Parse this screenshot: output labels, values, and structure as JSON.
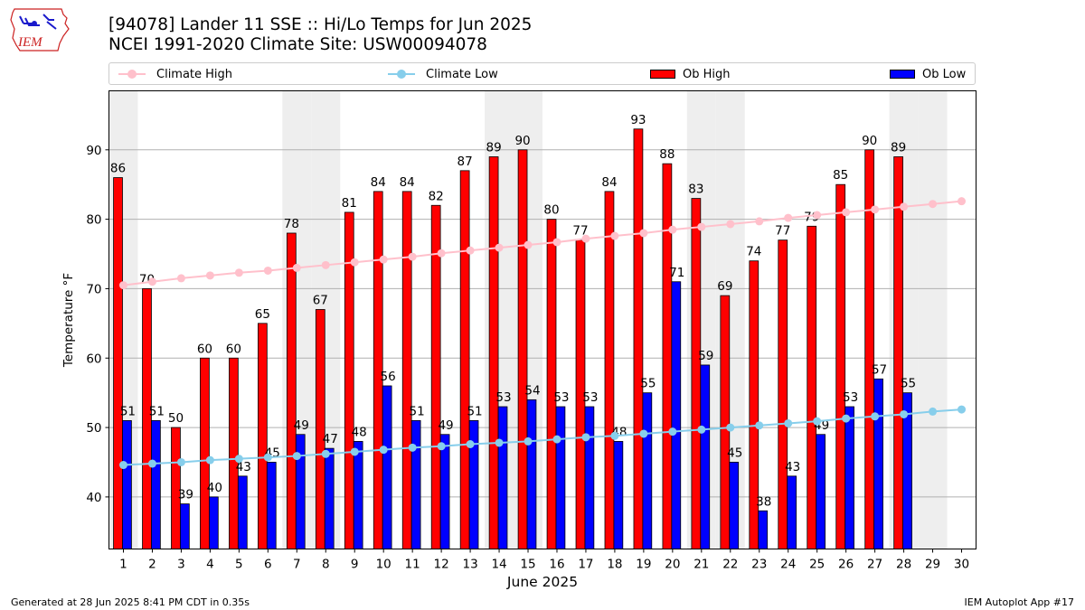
{
  "logo": {
    "text": "IEM"
  },
  "header": {
    "title_line1": "[94078] Lander 11 SSE :: Hi/Lo Temps for Jun 2025",
    "title_line2": "NCEI 1991-2020 Climate Site: USW00094078"
  },
  "legend": {
    "climate_high": "Climate High",
    "climate_low": "Climate Low",
    "ob_high": "Ob High",
    "ob_low": "Ob Low"
  },
  "colors": {
    "climate_high": "#ffc0cb",
    "climate_low": "#87ceeb",
    "ob_high": "#ff0000",
    "ob_low": "#0000ff",
    "weekend_shade": "#eeeeee",
    "grid": "#b0b0b0"
  },
  "footer": {
    "left": "Generated at 28 Jun 2025 8:41 PM CDT in 0.35s",
    "right": "IEM Autoplot App #17"
  },
  "chart_data": {
    "type": "bar",
    "xlabel": "June 2025",
    "ylabel": "Temperature °F",
    "ylim": [
      32.5,
      98.5
    ],
    "yticks": [
      40,
      50,
      60,
      70,
      80,
      90
    ],
    "grid": "horizontal",
    "legend_position": "top",
    "categories": [
      "1",
      "2",
      "3",
      "4",
      "5",
      "6",
      "7",
      "8",
      "9",
      "10",
      "11",
      "12",
      "13",
      "14",
      "15",
      "16",
      "17",
      "18",
      "19",
      "20",
      "21",
      "22",
      "23",
      "24",
      "25",
      "26",
      "27",
      "28",
      "29",
      "30"
    ],
    "shaded_days": [
      1,
      7,
      8,
      14,
      15,
      21,
      22,
      28,
      29
    ],
    "series": [
      {
        "name": "Ob High",
        "kind": "bar",
        "values": [
          86,
          70,
          50,
          60,
          60,
          65,
          78,
          67,
          81,
          84,
          84,
          82,
          87,
          89,
          90,
          80,
          77,
          84,
          93,
          88,
          83,
          69,
          74,
          77,
          79,
          85,
          90,
          89,
          null,
          null
        ]
      },
      {
        "name": "Ob Low",
        "kind": "bar",
        "values": [
          51,
          51,
          39,
          40,
          43,
          45,
          49,
          47,
          48,
          56,
          51,
          49,
          51,
          53,
          54,
          53,
          53,
          48,
          55,
          71,
          59,
          45,
          38,
          43,
          49,
          53,
          57,
          55,
          null,
          null
        ]
      },
      {
        "name": "Climate High",
        "kind": "line",
        "values": [
          70.5,
          71.0,
          71.5,
          71.9,
          72.3,
          72.6,
          73.0,
          73.4,
          73.8,
          74.2,
          74.6,
          75.1,
          75.5,
          75.9,
          76.3,
          76.7,
          77.2,
          77.6,
          78.0,
          78.5,
          78.9,
          79.3,
          79.7,
          80.2,
          80.6,
          81.0,
          81.4,
          81.8,
          82.2,
          82.6
        ]
      },
      {
        "name": "Climate Low",
        "kind": "line",
        "values": [
          44.6,
          44.8,
          45.0,
          45.3,
          45.5,
          45.7,
          45.9,
          46.2,
          46.5,
          46.8,
          47.1,
          47.3,
          47.6,
          47.8,
          48.0,
          48.3,
          48.6,
          48.8,
          49.1,
          49.4,
          49.7,
          50.0,
          50.3,
          50.6,
          50.9,
          51.3,
          51.6,
          51.9,
          52.3,
          52.6
        ]
      }
    ]
  }
}
